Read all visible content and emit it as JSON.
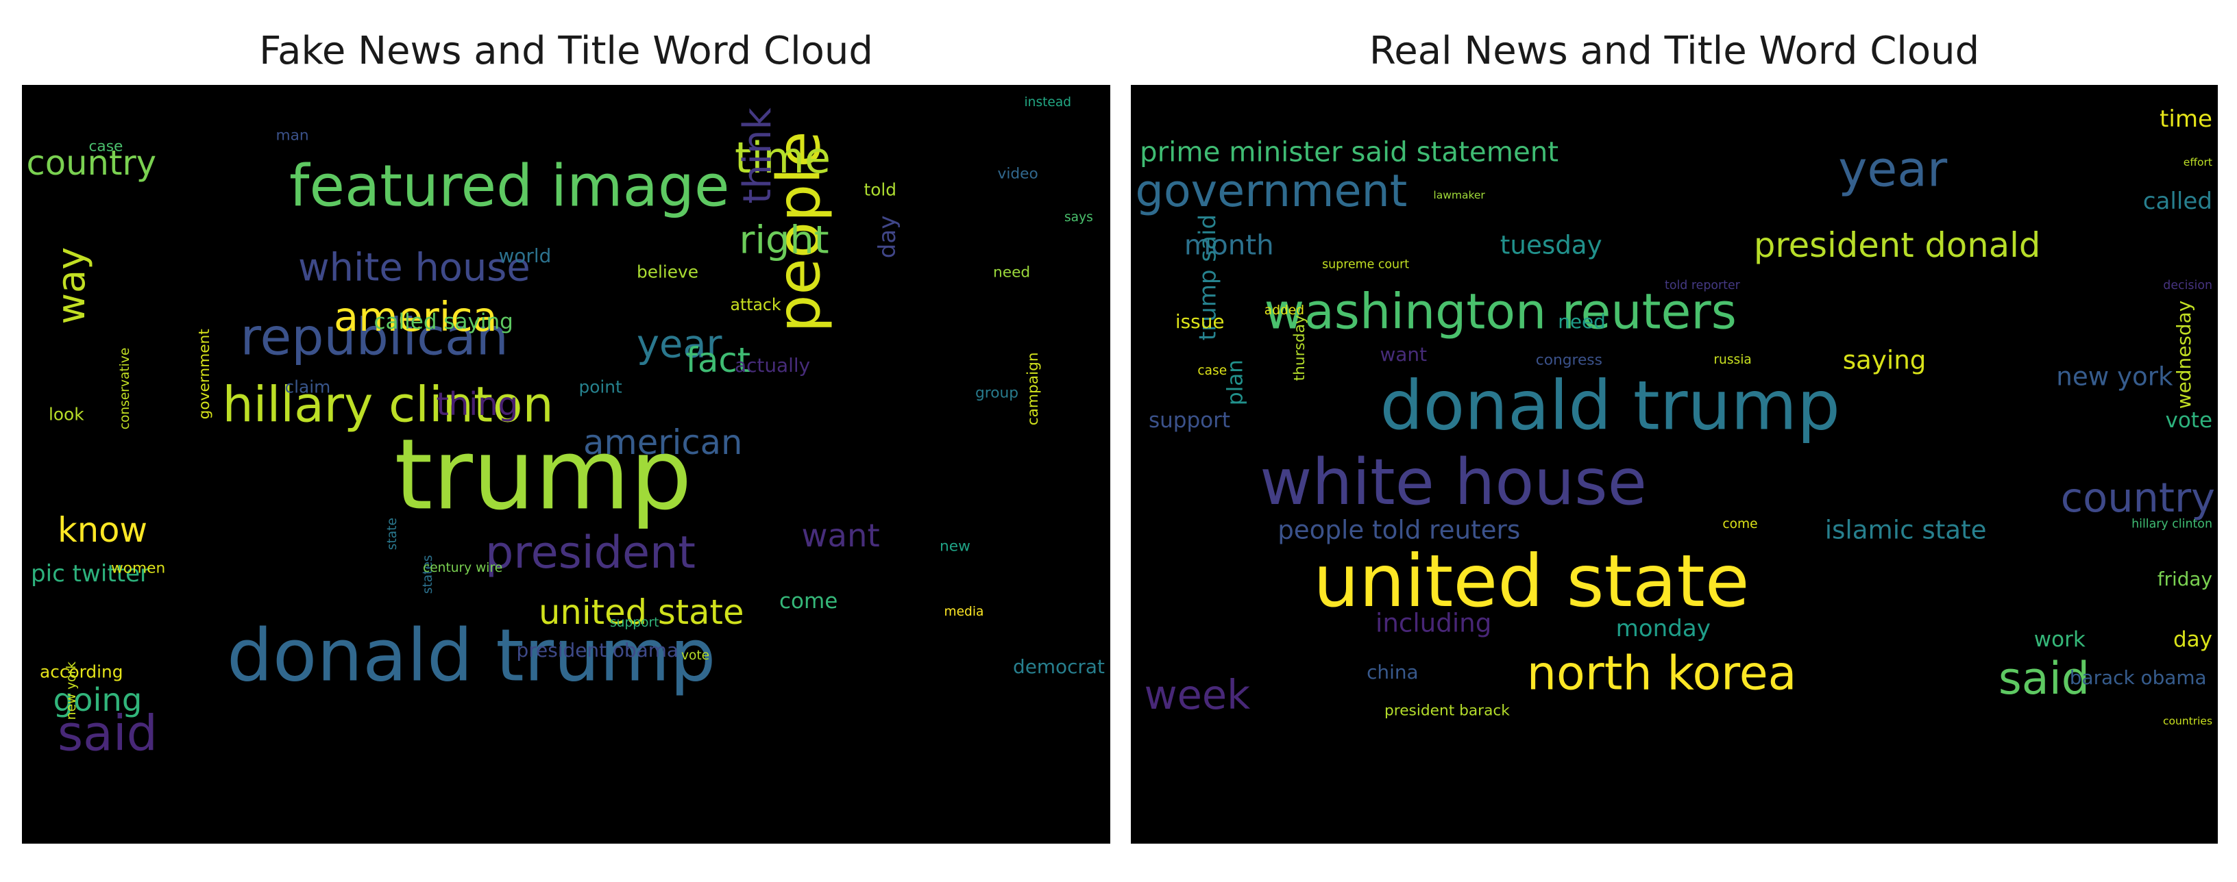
{
  "chart_data": [
    {
      "type": "wordcloud",
      "title": "Fake News and Title Word Cloud",
      "words": [
        [
          "trump",
          "#a0da39",
          230
        ],
        [
          "donald trump",
          "#31688e",
          170
        ],
        [
          "people",
          "#d8e219",
          140
        ],
        [
          "featured image",
          "#5ec962",
          135
        ],
        [
          "republican",
          "#3b528b",
          120
        ],
        [
          "hillary clinton",
          "#bddf26",
          115
        ],
        [
          "said",
          "#482878",
          115
        ],
        [
          "president",
          "#46327e",
          105
        ],
        [
          "time",
          "#b5de2b",
          100
        ],
        [
          "america",
          "#fde725",
          95
        ],
        [
          "way",
          "#c2df23",
          90
        ],
        [
          "think",
          "#443983",
          90
        ],
        [
          "white house",
          "#3e4989",
          90
        ],
        [
          "year",
          "#2a788e",
          90
        ],
        [
          "right",
          "#6ccd5a",
          90
        ],
        [
          "united state",
          "#d0e11c",
          80
        ],
        [
          "american",
          "#365c8d",
          80
        ],
        [
          "know",
          "#fde725",
          80
        ],
        [
          "fact",
          "#3fbc73",
          80
        ],
        [
          "country",
          "#7ad151",
          80
        ],
        [
          "going",
          "#31b57b",
          75
        ],
        [
          "want",
          "#472d7b",
          75
        ],
        [
          "thing",
          "#482071",
          75
        ],
        [
          "pic twitter",
          "#2db27d",
          55
        ],
        [
          "day",
          "#404688",
          55
        ],
        [
          "called saying",
          "#5ec962",
          50
        ],
        [
          "come",
          "#35b779",
          50
        ],
        [
          "democrat",
          "#277f8e",
          45
        ],
        [
          "president obama",
          "#3e4a89",
          45
        ],
        [
          "actually",
          "#472c7a",
          45
        ],
        [
          "world",
          "#2c728e",
          45
        ],
        [
          "believe",
          "#aadc32",
          40
        ],
        [
          "told",
          "#addc30",
          40
        ],
        [
          "claim",
          "#39568c",
          40
        ],
        [
          "point",
          "#26828e",
          40
        ],
        [
          "look",
          "#b8de29",
          40
        ],
        [
          "according",
          "#e5e419",
          40
        ],
        [
          "attack",
          "#c8e020",
          38
        ],
        [
          "group",
          "#287c8e",
          35
        ],
        [
          "new",
          "#20a386",
          35
        ],
        [
          "campaign",
          "#d0e11c",
          35
        ],
        [
          "need",
          "#9bd93c",
          35
        ],
        [
          "government",
          "#d5e21a",
          35
        ],
        [
          "video",
          "#31688e",
          35
        ],
        [
          "women",
          "#dde318",
          35
        ],
        [
          "case",
          "#4ac16d",
          35
        ],
        [
          "man",
          "#3b528b",
          35
        ],
        [
          "instead",
          "#22a884",
          30
        ],
        [
          "says",
          "#4ac16d",
          30
        ],
        [
          "states",
          "#2c728e",
          30
        ],
        [
          "media",
          "#fde725",
          30
        ],
        [
          "vote",
          "#b8de29",
          30
        ],
        [
          "support",
          "#31b57b",
          30
        ],
        [
          "century wire",
          "#7ad151",
          30
        ],
        [
          "new york",
          "#cae11f",
          30
        ],
        [
          "conservative",
          "#c2df23",
          30
        ],
        [
          "state",
          "#2a788e",
          30
        ]
      ]
    },
    {
      "type": "wordcloud",
      "title": "Real News and Title Word Cloud",
      "words": [
        [
          "united state",
          "#fde725",
          170
        ],
        [
          "donald trump",
          "#2a788e",
          160
        ],
        [
          "white house",
          "#433e85",
          150
        ],
        [
          "washington reuters",
          "#4ac16d",
          115
        ],
        [
          "north korea",
          "#fde725",
          110
        ],
        [
          "year",
          "#35608d",
          115
        ],
        [
          "government",
          "#2f6b8e",
          105
        ],
        [
          "said",
          "#5ec962",
          105
        ],
        [
          "country",
          "#3e4989",
          95
        ],
        [
          "week",
          "#482878",
          95
        ],
        [
          "president donald",
          "#b8de29",
          80
        ],
        [
          "month",
          "#2c728e",
          65
        ],
        [
          "prime minister said statement",
          "#3fbc73",
          65
        ],
        [
          "people told reuters",
          "#3b528b",
          60
        ],
        [
          "islamic state",
          "#27808e",
          60
        ],
        [
          "including",
          "#482677",
          60
        ],
        [
          "new york",
          "#365c8d",
          60
        ],
        [
          "saying",
          "#d8e219",
          60
        ],
        [
          "tuesday",
          "#21918c",
          60
        ],
        [
          "called",
          "#277f8e",
          55
        ],
        [
          "time",
          "#e5e419",
          55
        ],
        [
          "trump said",
          "#26828e",
          55
        ],
        [
          "monday",
          "#1f9e89",
          55
        ],
        [
          "work",
          "#35b779",
          50
        ],
        [
          "day",
          "#d8e219",
          50
        ],
        [
          "plan",
          "#21918c",
          50
        ],
        [
          "vote",
          "#2db27d",
          50
        ],
        [
          "support",
          "#3b528b",
          50
        ],
        [
          "want",
          "#472c7a",
          45
        ],
        [
          "need",
          "#1e9c89",
          45
        ],
        [
          "issue",
          "#dde318",
          45
        ],
        [
          "china",
          "#38598c",
          45
        ],
        [
          "barack obama",
          "#365c8d",
          45
        ],
        [
          "friday",
          "#7ad151",
          45
        ],
        [
          "wednesday",
          "#c2df23",
          45
        ],
        [
          "thursday",
          "#b5de2b",
          35
        ],
        [
          "president barack",
          "#b5de2b",
          35
        ],
        [
          "congress",
          "#3b528b",
          35
        ],
        [
          "russia",
          "#c8e020",
          30
        ],
        [
          "added",
          "#e5e419",
          30
        ],
        [
          "case",
          "#dde318",
          30
        ],
        [
          "come",
          "#dde318",
          30
        ],
        [
          "hillary clinton",
          "#3fbc73",
          28
        ],
        [
          "supreme court",
          "#c2df23",
          28
        ],
        [
          "told reporter",
          "#443983",
          28
        ],
        [
          "decision",
          "#46337f",
          28
        ],
        [
          "lawmaker",
          "#a0da39",
          25
        ],
        [
          "effort",
          "#bddf26",
          25
        ],
        [
          "countries",
          "#cae11f",
          25
        ]
      ]
    }
  ]
}
